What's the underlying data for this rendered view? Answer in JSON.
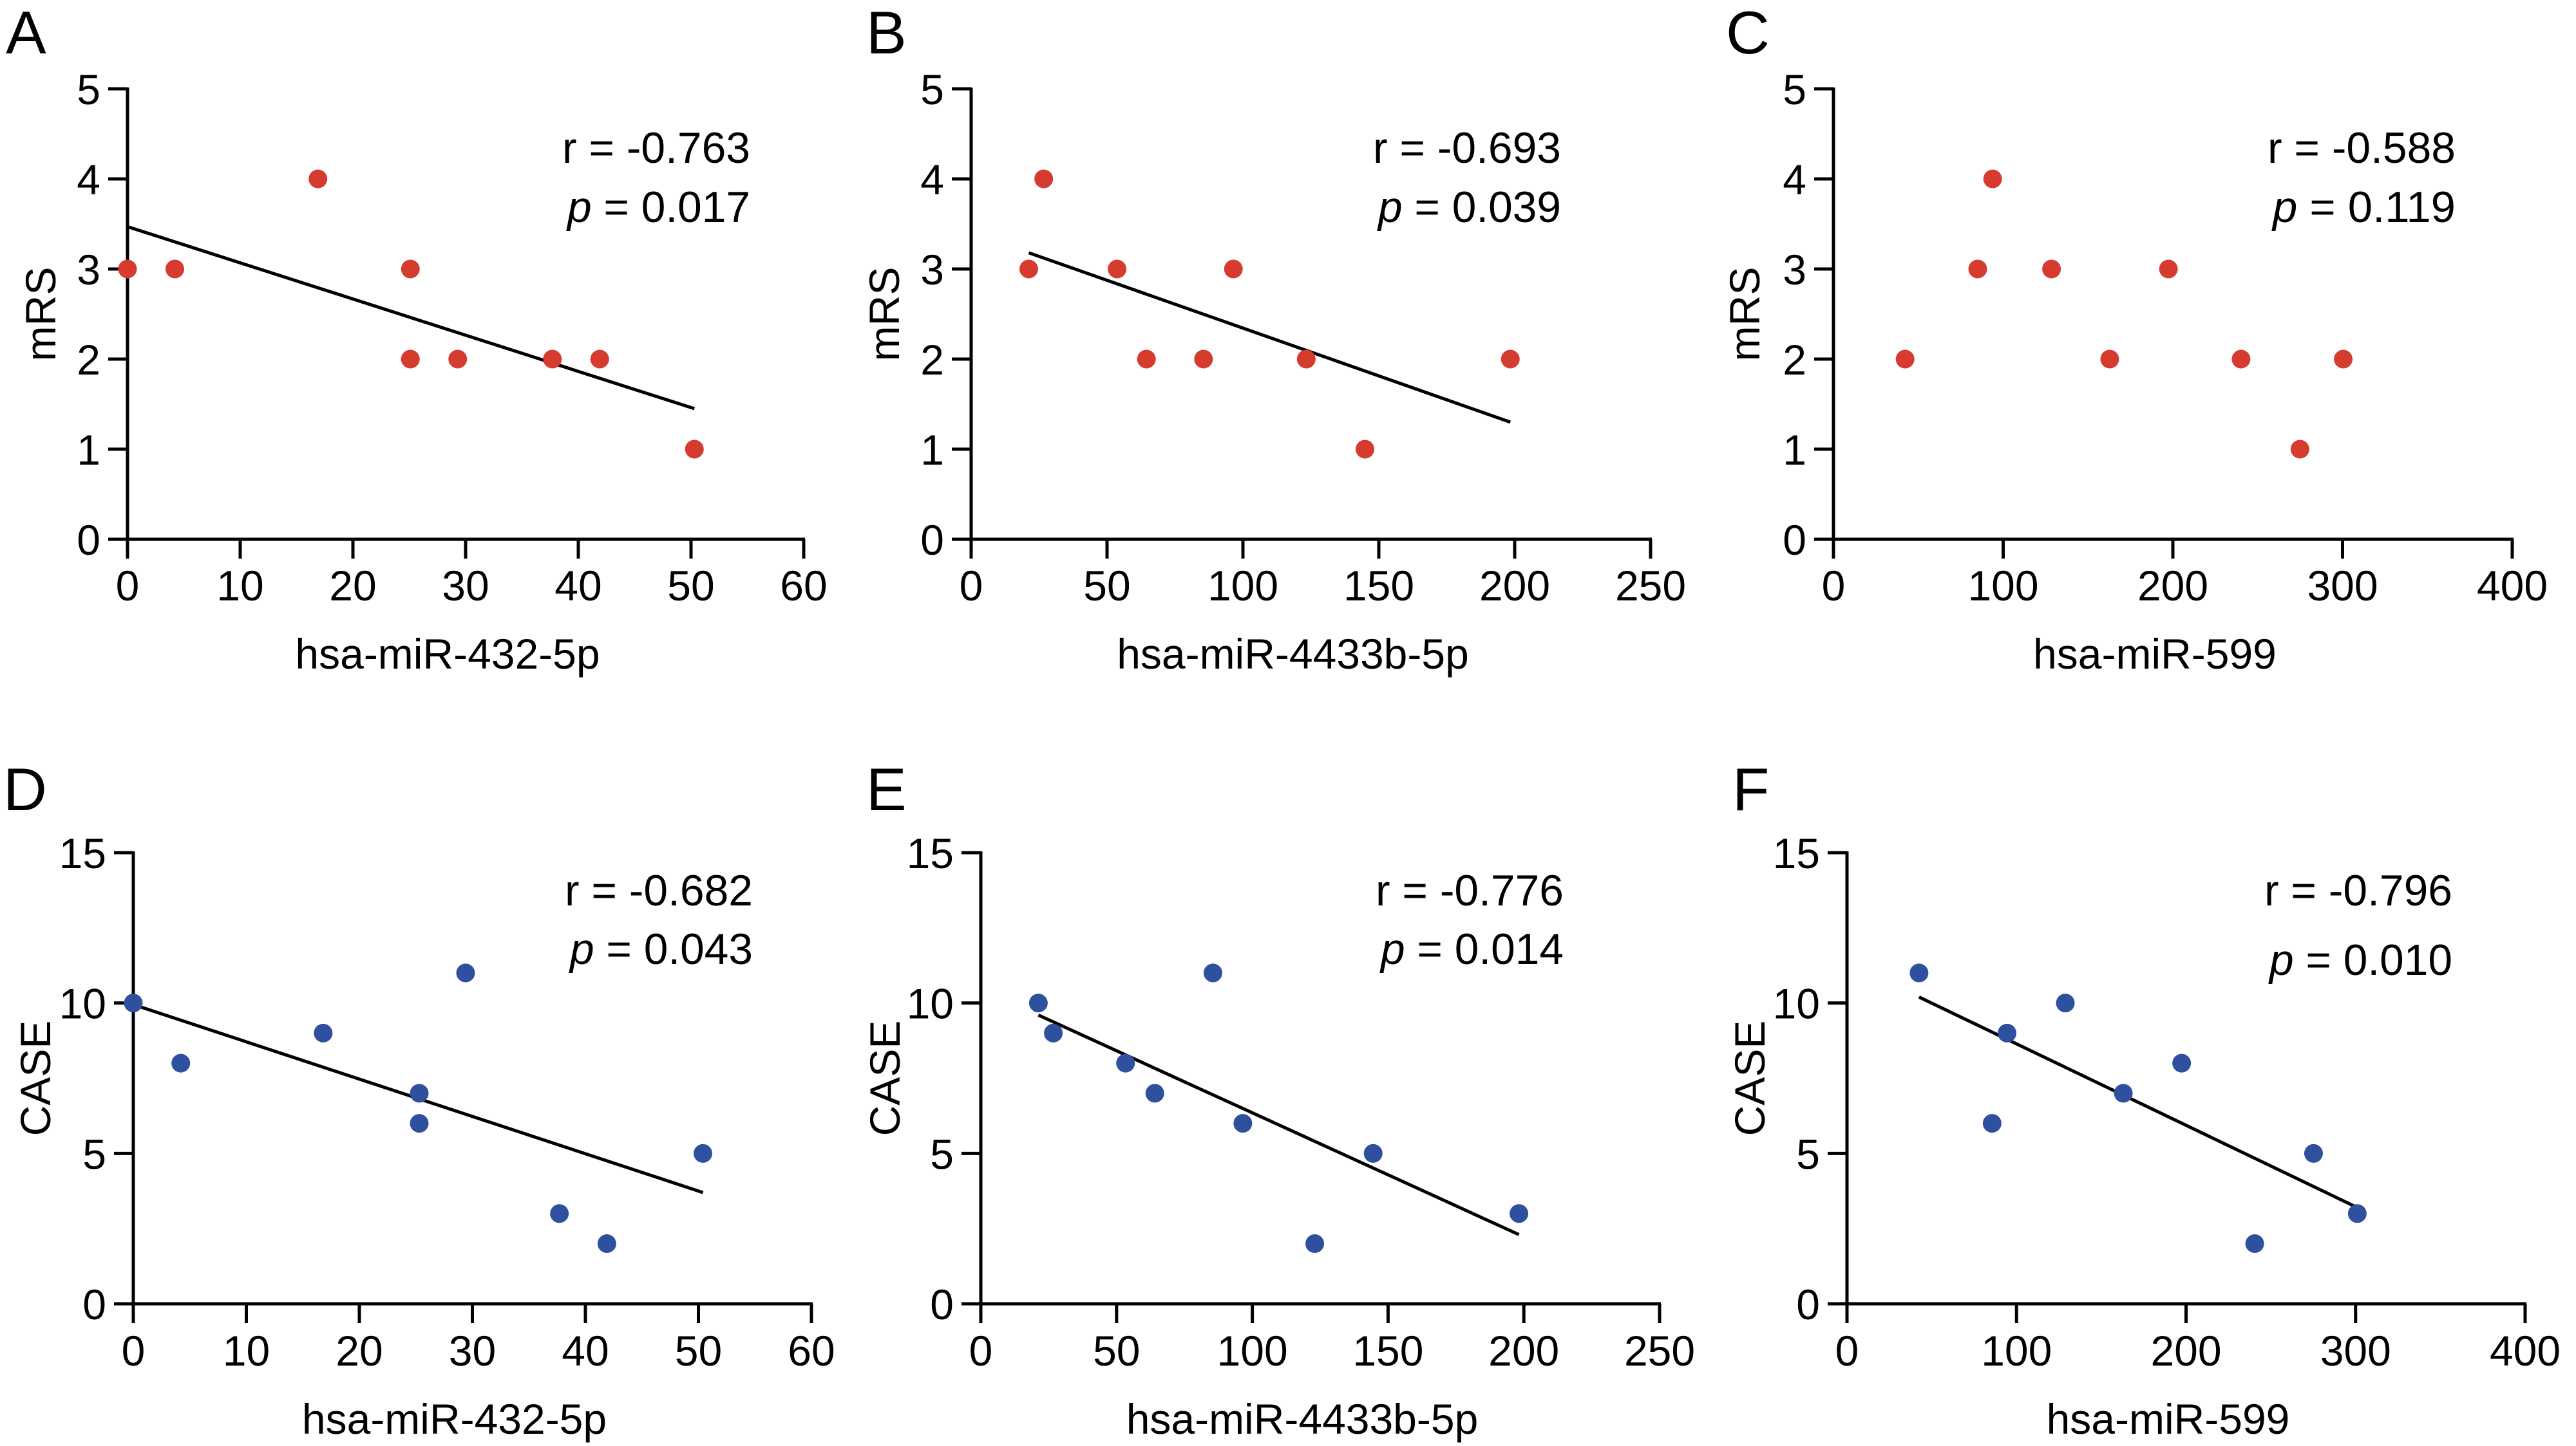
{
  "figure": {
    "colors": {
      "mrs_points": "#d63b2f",
      "case_points": "#2f4f9f",
      "axis": "#000000",
      "fit_line": "#000000"
    }
  },
  "chart_data": [
    {
      "panel": "A",
      "type": "scatter",
      "xlabel": "hsa-miR-432-5p",
      "ylabel": "mRS",
      "xlim": [
        0,
        60
      ],
      "ylim": [
        0,
        5
      ],
      "xticks": [
        "0",
        "10",
        "20",
        "30",
        "40",
        "50",
        "60"
      ],
      "yticks": [
        "0",
        "1",
        "2",
        "3",
        "4",
        "5"
      ],
      "stats": {
        "r": "r = -0.763",
        "p_label": "p",
        "p_value": " = 0.017"
      },
      "point_color": "mrs",
      "points": [
        [
          0,
          3
        ],
        [
          4.2,
          3
        ],
        [
          16.9,
          4
        ],
        [
          25.1,
          3
        ],
        [
          25.1,
          2
        ],
        [
          29.3,
          2
        ],
        [
          37.7,
          2
        ],
        [
          41.9,
          2
        ],
        [
          50.3,
          1
        ]
      ],
      "fit": [
        [
          0,
          3.47
        ],
        [
          50.3,
          1.45
        ]
      ]
    },
    {
      "panel": "B",
      "type": "scatter",
      "xlabel": "hsa-miR-4433b-5p",
      "ylabel": "mRS",
      "xlim": [
        0,
        250
      ],
      "ylim": [
        0,
        5
      ],
      "xticks": [
        "0",
        "50",
        "100",
        "150",
        "200",
        "250"
      ],
      "yticks": [
        "0",
        "1",
        "2",
        "3",
        "4",
        "5"
      ],
      "stats": {
        "r": "r = -0.693",
        "p_label": "p",
        "p_value": " = 0.039"
      },
      "point_color": "mrs",
      "points": [
        [
          21.2,
          3
        ],
        [
          26.7,
          4
        ],
        [
          53.7,
          3
        ],
        [
          64.5,
          2
        ],
        [
          85.5,
          2
        ],
        [
          96.5,
          3
        ],
        [
          123.3,
          2
        ],
        [
          144.9,
          1
        ],
        [
          198.4,
          2
        ]
      ],
      "fit": [
        [
          21.2,
          3.18
        ],
        [
          198.4,
          1.3
        ]
      ]
    },
    {
      "panel": "C",
      "type": "scatter",
      "xlabel": "hsa-miR-599",
      "ylabel": "mRS",
      "xlim": [
        0,
        400
      ],
      "ylim": [
        0,
        5
      ],
      "xticks": [
        "0",
        "100",
        "200",
        "300",
        "400"
      ],
      "yticks": [
        "0",
        "1",
        "2",
        "3",
        "4",
        "5"
      ],
      "stats": {
        "r": "r = -0.588",
        "p_label": "p",
        "p_value": " = 0.119"
      },
      "point_color": "mrs",
      "points": [
        [
          42.2,
          2
        ],
        [
          85,
          3
        ],
        [
          93.8,
          4
        ],
        [
          128.5,
          3
        ],
        [
          162.8,
          2
        ],
        [
          197.4,
          3
        ],
        [
          240.2,
          2
        ],
        [
          274.9,
          1
        ],
        [
          300.4,
          2
        ]
      ],
      "fit": null
    },
    {
      "panel": "D",
      "type": "scatter",
      "xlabel": "hsa-miR-432-5p",
      "ylabel": "CASE",
      "xlim": [
        0,
        60
      ],
      "ylim": [
        0,
        15
      ],
      "xticks": [
        "0",
        "10",
        "20",
        "30",
        "40",
        "50",
        "60"
      ],
      "yticks": [
        "0",
        "5",
        "10",
        "15"
      ],
      "stats": {
        "r": "r = -0.682",
        "p_label": "p",
        "p_value": " = 0.043"
      },
      "point_color": "case",
      "points": [
        [
          0,
          10
        ],
        [
          4.2,
          8
        ],
        [
          16.8,
          9
        ],
        [
          25.3,
          7
        ],
        [
          25.3,
          6
        ],
        [
          29.4,
          11
        ],
        [
          37.7,
          3
        ],
        [
          41.9,
          2
        ],
        [
          50.4,
          5
        ]
      ],
      "fit": [
        [
          0,
          9.95
        ],
        [
          50.4,
          3.7
        ]
      ]
    },
    {
      "panel": "E",
      "type": "scatter",
      "xlabel": "hsa-miR-4433b-5p",
      "ylabel": "CASE",
      "xlim": [
        0,
        250
      ],
      "ylim": [
        0,
        15
      ],
      "xticks": [
        "0",
        "50",
        "100",
        "150",
        "200",
        "250"
      ],
      "yticks": [
        "0",
        "5",
        "10",
        "15"
      ],
      "stats": {
        "r": "r = -0.776",
        "p_label": "p",
        "p_value": " = 0.014"
      },
      "point_color": "case",
      "points": [
        [
          21.2,
          10
        ],
        [
          26.7,
          9
        ],
        [
          53.3,
          8
        ],
        [
          64.1,
          7
        ],
        [
          85.5,
          11
        ],
        [
          96.5,
          6
        ],
        [
          123,
          2
        ],
        [
          144.5,
          5
        ],
        [
          198.2,
          3
        ]
      ],
      "fit": [
        [
          21.2,
          9.6
        ],
        [
          198.2,
          2.3
        ]
      ]
    },
    {
      "panel": "F",
      "type": "scatter",
      "xlabel": "hsa-miR-599",
      "ylabel": "CASE",
      "xlim": [
        0,
        400
      ],
      "ylim": [
        0,
        15
      ],
      "xticks": [
        "0",
        "100",
        "200",
        "300",
        "400"
      ],
      "yticks": [
        "0",
        "5",
        "10",
        "15"
      ],
      "stats": {
        "r": "r = -0.796",
        "p_label": "p",
        "p_value": " = 0.010"
      },
      "point_color": "case",
      "points": [
        [
          42.5,
          11
        ],
        [
          85.6,
          6
        ],
        [
          94.4,
          9
        ],
        [
          128.8,
          10
        ],
        [
          163,
          7
        ],
        [
          197.4,
          8
        ],
        [
          240.5,
          2
        ],
        [
          275.2,
          5
        ],
        [
          301,
          3
        ]
      ],
      "fit": [
        [
          42.5,
          10.2
        ],
        [
          301,
          3.2
        ]
      ]
    }
  ]
}
